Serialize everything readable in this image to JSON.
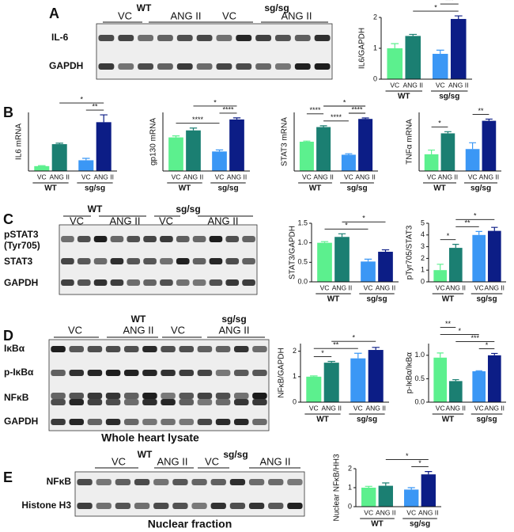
{
  "panels": [
    {
      "letter": "A",
      "blot_header": [
        "VC",
        "WT",
        "ANG II",
        "VC",
        "sg/sg",
        "ANG II"
      ],
      "blot_rows": [
        "IL-6",
        "GAPDH"
      ]
    },
    {
      "letter": "B"
    },
    {
      "letter": "C",
      "blot_header": [
        "WT",
        "VC",
        "ANG II",
        "sg/sg",
        "VC",
        "ANG II"
      ],
      "blot_rows": [
        "pSTAT3",
        "(Tyr705)",
        "STAT3",
        "GAPDH"
      ]
    },
    {
      "letter": "D",
      "blot_header": [
        "VC",
        "WT",
        "ANG II",
        "VC",
        "sg/sg",
        "ANG II"
      ],
      "blot_rows": [
        "IκBα",
        "p-IκBα",
        "NFκB",
        "GAPDH"
      ],
      "caption": "Whole heart lysate"
    },
    {
      "letter": "E",
      "blot_header": [
        "VC",
        "WT",
        "ANG II",
        "VC",
        "sg/sg",
        "ANG II"
      ],
      "blot_rows": [
        "NFκB",
        "Histone H3"
      ],
      "caption": "Nuclear fraction"
    }
  ],
  "chart_data": [
    {
      "type": "bar",
      "ylabel": "IL6/GAPDH",
      "categories": [
        "VC",
        "ANG II",
        "VC",
        "ANG II"
      ],
      "groups": [
        "WT",
        "sg/sg"
      ],
      "values": [
        1.0,
        1.4,
        0.82,
        1.95
      ],
      "errors": [
        0.15,
        0.05,
        0.12,
        0.1
      ],
      "colors": [
        "#5cf08e",
        "#1b7f72",
        "#3b97f5",
        "#0c1d86"
      ],
      "ylim": [
        0,
        2
      ],
      "yticks": [
        0,
        1,
        2
      ],
      "comparisons": [
        {
          "label": "*",
          "pair": [
            1,
            3
          ]
        },
        {
          "label": "***",
          "pair": [
            2,
            3
          ]
        }
      ]
    },
    {
      "type": "bar",
      "ylabel": "IL6 mRNA",
      "categories": [
        "VC",
        "ANG II",
        "VC",
        "ANG II"
      ],
      "groups": [
        "WT",
        "sg/sg"
      ],
      "values": [
        1.0,
        5.5,
        2.2,
        10
      ],
      "errors": [
        0.1,
        0.2,
        0.4,
        1.5
      ],
      "colors": [
        "#5cf08e",
        "#1b7f72",
        "#3b97f5",
        "#0c1d86"
      ],
      "ylim": [
        0,
        12
      ],
      "comparisons": [
        {
          "label": "**",
          "pair": [
            2,
            3
          ]
        },
        {
          "label": "*",
          "pair": [
            1,
            3
          ]
        }
      ]
    },
    {
      "type": "bar",
      "ylabel": "gp130 mRNA",
      "categories": [
        "VC",
        "ANG II",
        "VC",
        "ANG II"
      ],
      "groups": [
        "WT",
        "sg/sg"
      ],
      "values": [
        43,
        52,
        25,
        66
      ],
      "errors": [
        2,
        3,
        2,
        2
      ],
      "colors": [
        "#5cf08e",
        "#1b7f72",
        "#3b97f5",
        "#0c1d86"
      ],
      "ylim": [
        0,
        75
      ],
      "comparisons": [
        {
          "label": "****",
          "pair": [
            0,
            2
          ]
        },
        {
          "label": "****",
          "pair": [
            2,
            3
          ]
        },
        {
          "label": "*",
          "pair": [
            1,
            3
          ]
        }
      ]
    },
    {
      "type": "bar",
      "ylabel": "STAT3 mRNA",
      "categories": [
        "VC",
        "ANG II",
        "VC",
        "ANG II"
      ],
      "groups": [
        "WT",
        "sg/sg"
      ],
      "values": [
        0.9,
        1.35,
        0.5,
        1.6
      ],
      "errors": [
        0.02,
        0.04,
        0.03,
        0.03
      ],
      "colors": [
        "#5cf08e",
        "#1b7f72",
        "#3b97f5",
        "#0c1d86"
      ],
      "ylim": [
        0,
        1.8
      ],
      "comparisons": [
        {
          "label": "****",
          "pair": [
            1,
            2
          ]
        },
        {
          "label": "****",
          "pair": [
            2,
            3
          ]
        },
        {
          "label": "****",
          "pair": [
            0,
            1
          ]
        },
        {
          "label": "*",
          "pair": [
            1,
            3
          ]
        }
      ]
    },
    {
      "type": "bar",
      "ylabel": "TNFα mRNA",
      "categories": [
        "VC",
        "ANG II",
        "VC",
        "ANG II"
      ],
      "groups": [
        "WT",
        "sg/sg"
      ],
      "values": [
        0.8,
        1.8,
        1.05,
        2.4
      ],
      "errors": [
        0.2,
        0.08,
        0.3,
        0.08
      ],
      "colors": [
        "#5cf08e",
        "#1b7f72",
        "#3b97f5",
        "#0c1d86"
      ],
      "ylim": [
        0,
        2.8
      ],
      "comparisons": [
        {
          "label": "*",
          "pair": [
            0,
            1
          ]
        },
        {
          "label": "**",
          "pair": [
            2,
            3
          ]
        }
      ]
    },
    {
      "type": "bar",
      "ylabel": "STAT3/GAPDH",
      "categories": [
        "VC",
        "ANG II",
        "VC",
        "ANG II"
      ],
      "groups": [
        "WT",
        "sg/sg"
      ],
      "values": [
        1.0,
        1.15,
        0.52,
        0.77
      ],
      "errors": [
        0.03,
        0.08,
        0.06,
        0.05
      ],
      "colors": [
        "#5cf08e",
        "#1b7f72",
        "#3b97f5",
        "#0c1d86"
      ],
      "ylim": [
        0,
        1.5
      ],
      "yticks": [
        {
          "value": 0,
          "label": "0.0"
        },
        0.5,
        {
          "value": 1,
          "label": "1.0"
        },
        1.5
      ],
      "comparisons": [
        {
          "label": "*",
          "pair": [
            0,
            2
          ]
        },
        {
          "label": "*",
          "pair": [
            1,
            3
          ]
        }
      ]
    },
    {
      "type": "bar",
      "ylabel": "pTyr705/STAT3",
      "categories": [
        "VC",
        "ANG II",
        "VC",
        "ANG II"
      ],
      "groups": [
        "WT",
        "sg/sg"
      ],
      "values": [
        1.0,
        2.9,
        4.0,
        4.35
      ],
      "errors": [
        0.5,
        0.3,
        0.3,
        0.3
      ],
      "colors": [
        "#5cf08e",
        "#1b7f72",
        "#3b97f5",
        "#0c1d86"
      ],
      "ylim": [
        0,
        5
      ],
      "yticks": [
        0,
        1,
        2,
        3,
        4,
        5
      ],
      "comparisons": [
        {
          "label": "*",
          "pair": [
            0,
            1
          ]
        },
        {
          "label": "**",
          "pair": [
            1,
            2
          ]
        },
        {
          "label": "*",
          "pair": [
            1,
            3
          ]
        }
      ]
    },
    {
      "type": "bar",
      "ylabel": "NFκB/GAPDH",
      "categories": [
        "VC",
        "ANG II",
        "VC",
        "ANG II"
      ],
      "groups": [
        "WT",
        "sg/sg"
      ],
      "values": [
        1.0,
        1.55,
        1.72,
        2.05
      ],
      "errors": [
        0.03,
        0.05,
        0.2,
        0.1
      ],
      "colors": [
        "#5cf08e",
        "#1b7f72",
        "#3b97f5",
        "#0c1d86"
      ],
      "ylim": [
        0,
        2.3
      ],
      "yticks": [
        0,
        1,
        2
      ],
      "comparisons": [
        {
          "label": "*",
          "pair": [
            0,
            1
          ]
        },
        {
          "label": "**",
          "pair": [
            0,
            2
          ]
        },
        {
          "label": "*",
          "pair": [
            1,
            3
          ]
        }
      ]
    },
    {
      "type": "bar",
      "ylabel": "p-IκBα/IκBα",
      "categories": [
        "VC",
        "ANG II",
        "VC",
        "ANG II"
      ],
      "groups": [
        "WT",
        "sg/sg"
      ],
      "values": [
        0.95,
        0.45,
        0.66,
        1.0
      ],
      "errors": [
        0.1,
        0.03,
        0.01,
        0.04
      ],
      "colors": [
        "#5cf08e",
        "#1b7f72",
        "#3b97f5",
        "#0c1d86"
      ],
      "ylim": [
        0,
        1.25
      ],
      "yticks": [
        {
          "value": 0,
          "label": "0.0"
        },
        0.5,
        {
          "value": 1,
          "label": "1.0"
        }
      ],
      "comparisons": [
        {
          "label": "*",
          "pair": [
            2,
            3
          ]
        },
        {
          "label": "***",
          "pair": [
            1,
            3
          ]
        },
        {
          "label": "*",
          "pair": [
            0,
            2
          ]
        },
        {
          "label": "**",
          "pair": [
            0,
            1
          ]
        }
      ]
    },
    {
      "type": "bar",
      "ylabel": "Nuclear NFκB/HH3",
      "categories": [
        "VC",
        "ANG II",
        "VC",
        "ANG II"
      ],
      "groups": [
        "WT",
        "sg/sg"
      ],
      "values": [
        1.0,
        1.1,
        0.9,
        1.7
      ],
      "errors": [
        0.07,
        0.15,
        0.1,
        0.15
      ],
      "colors": [
        "#5cf08e",
        "#1b7f72",
        "#3b97f5",
        "#0c1d86"
      ],
      "ylim": [
        0,
        2
      ],
      "yticks": [
        0,
        1,
        2
      ],
      "comparisons": [
        {
          "label": "*",
          "pair": [
            2,
            3
          ]
        },
        {
          "label": "*",
          "pair": [
            1,
            3
          ]
        }
      ]
    }
  ]
}
